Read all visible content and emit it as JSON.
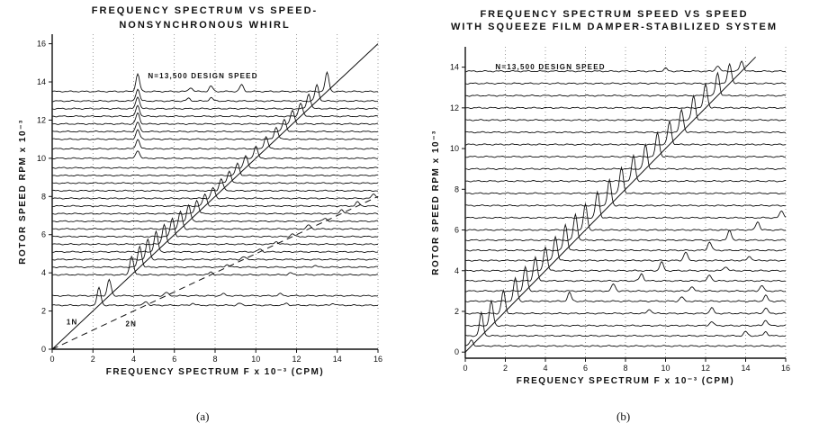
{
  "figures": [
    {
      "caption": "(a)",
      "chart_data": {
        "type": "line",
        "title": "FREQUENCY SPECTRUM VS SPEED-",
        "subtitle": "NONSYNCHRONOUS WHIRL",
        "xlabel": "FREQUENCY SPECTRUM F x 10⁻³ (CPM)",
        "ylabel": "ROTOR SPEED RPM x 10⁻³",
        "xlim": [
          0,
          16
        ],
        "ylim": [
          0,
          16.5
        ],
        "xticks": [
          0,
          2,
          4,
          6,
          8,
          10,
          12,
          14,
          16
        ],
        "yticks": [
          0,
          2,
          4,
          6,
          8,
          10,
          12,
          14,
          16
        ],
        "annotations": [
          {
            "text": "N=13,500 DESIGN SPEED",
            "x": 4.7,
            "y": 14.2
          },
          {
            "text": "1N",
            "x": 0.7,
            "y": 1.3
          },
          {
            "text": "2N",
            "x": 3.6,
            "y": 1.2
          }
        ],
        "reference_lines": [
          {
            "name": "1N",
            "slope": 1,
            "style": "solid"
          },
          {
            "name": "2N",
            "slope": 0.5,
            "style": "dashed"
          }
        ],
        "series": [
          {
            "speed": 2.3,
            "peaks": [
              [
                2.3,
                1.3
              ],
              [
                4.6,
                0.3
              ],
              [
                6.9,
                0.15
              ],
              [
                9.2,
                0.15
              ],
              [
                11.5,
                0.15
              ],
              [
                13.8,
                0.15
              ]
            ]
          },
          {
            "speed": 2.8,
            "peaks": [
              [
                2.8,
                1.2
              ],
              [
                5.6,
                0.25
              ],
              [
                8.4,
                0.15
              ],
              [
                11.2,
                0.15
              ]
            ]
          },
          {
            "speed": 3.9,
            "peaks": [
              [
                3.9,
                1.4
              ],
              [
                7.8,
                0.2
              ],
              [
                11.7,
                0.15
              ]
            ]
          },
          {
            "speed": 4.3,
            "peaks": [
              [
                4.3,
                1.6
              ],
              [
                8.6,
                0.2
              ],
              [
                12.9,
                0.12
              ]
            ]
          },
          {
            "speed": 4.7,
            "peaks": [
              [
                4.7,
                1.5
              ],
              [
                9.4,
                0.2
              ]
            ]
          },
          {
            "speed": 5.1,
            "peaks": [
              [
                5.1,
                1.5
              ],
              [
                10.2,
                0.2
              ]
            ]
          },
          {
            "speed": 5.5,
            "peaks": [
              [
                5.5,
                1.5
              ],
              [
                11.0,
                0.2
              ]
            ]
          },
          {
            "speed": 5.9,
            "peaks": [
              [
                5.9,
                1.4
              ],
              [
                11.8,
                0.2
              ]
            ]
          },
          {
            "speed": 6.3,
            "peaks": [
              [
                6.3,
                1.3
              ],
              [
                12.6,
                0.3
              ]
            ]
          },
          {
            "speed": 6.7,
            "peaks": [
              [
                6.7,
                1.2
              ],
              [
                13.4,
                0.25
              ]
            ]
          },
          {
            "speed": 7.1,
            "peaks": [
              [
                7.1,
                1.0
              ],
              [
                14.2,
                0.3
              ]
            ]
          },
          {
            "speed": 7.5,
            "peaks": [
              [
                7.5,
                0.9
              ],
              [
                15.0,
                0.3
              ]
            ]
          },
          {
            "speed": 7.9,
            "peaks": [
              [
                7.9,
                0.8
              ],
              [
                15.8,
                0.35
              ]
            ]
          },
          {
            "speed": 8.3,
            "peaks": [
              [
                8.3,
                0.9
              ]
            ]
          },
          {
            "speed": 8.7,
            "peaks": [
              [
                8.7,
                0.9
              ]
            ]
          },
          {
            "speed": 9.1,
            "peaks": [
              [
                9.1,
                0.9
              ]
            ]
          },
          {
            "speed": 9.5,
            "peaks": [
              [
                9.5,
                0.9
              ]
            ]
          },
          {
            "speed": 10.0,
            "peaks": [
              [
                4.2,
                0.6
              ],
              [
                10.0,
                0.9
              ]
            ]
          },
          {
            "speed": 10.5,
            "peaks": [
              [
                4.2,
                0.7
              ],
              [
                10.5,
                0.9
              ]
            ]
          },
          {
            "speed": 11.0,
            "peaks": [
              [
                4.2,
                0.7
              ],
              [
                11.0,
                0.9
              ]
            ]
          },
          {
            "speed": 11.4,
            "peaks": [
              [
                4.2,
                0.7
              ],
              [
                11.4,
                0.9
              ]
            ]
          },
          {
            "speed": 11.8,
            "peaks": [
              [
                4.2,
                0.8
              ],
              [
                11.8,
                1.0
              ]
            ]
          },
          {
            "speed": 12.2,
            "peaks": [
              [
                4.2,
                0.8
              ],
              [
                12.2,
                1.0
              ]
            ]
          },
          {
            "speed": 12.6,
            "peaks": [
              [
                4.2,
                0.9
              ],
              [
                12.6,
                1.1
              ]
            ]
          },
          {
            "speed": 13.0,
            "peaks": [
              [
                4.2,
                0.9
              ],
              [
                13.0,
                1.2
              ],
              [
                6.7,
                0.2
              ],
              [
                7.8,
                0.25
              ]
            ]
          },
          {
            "speed": 13.5,
            "peaks": [
              [
                4.2,
                1.3
              ],
              [
                13.5,
                1.4
              ],
              [
                6.8,
                0.3
              ],
              [
                7.8,
                0.4
              ],
              [
                9.3,
                0.5
              ]
            ]
          }
        ]
      }
    },
    {
      "caption": "(b)",
      "chart_data": {
        "type": "line",
        "title": "FREQUENCY SPECTRUM SPEED VS SPEED",
        "subtitle": "WITH SQUEEZE FILM DAMPER-STABILIZED SYSTEM",
        "xlabel": "FREQUENCY SPECTRUM F x 10⁻³ (CPM)",
        "ylabel": "ROTOR SPEED RPM x 10⁻³",
        "xlim": [
          0,
          16
        ],
        "ylim": [
          -0.3,
          15
        ],
        "xticks": [
          0,
          2,
          4,
          6,
          8,
          10,
          12,
          14,
          16
        ],
        "yticks": [
          0,
          2,
          4,
          6,
          8,
          10,
          12,
          14
        ],
        "annotations": [
          {
            "text": "N=13,500 DESIGN SPEED",
            "x": 1.5,
            "y": 13.9
          }
        ],
        "reference_lines": [
          {
            "name": "1N",
            "slope": 1,
            "style": "solid"
          }
        ],
        "series": [
          {
            "speed": 0.3,
            "peaks": [
              [
                0.3,
                0.4
              ]
            ]
          },
          {
            "speed": 0.8,
            "peaks": [
              [
                0.8,
                1.6
              ],
              [
                14.0,
                0.3
              ],
              [
                15.0,
                0.3
              ]
            ]
          },
          {
            "speed": 1.3,
            "peaks": [
              [
                1.3,
                1.7
              ],
              [
                12.3,
                0.3
              ],
              [
                15.0,
                0.4
              ]
            ]
          },
          {
            "speed": 1.9,
            "peaks": [
              [
                1.9,
                1.6
              ],
              [
                9.2,
                0.3
              ],
              [
                12.3,
                0.4
              ],
              [
                15.0,
                0.4
              ]
            ]
          },
          {
            "speed": 2.5,
            "peaks": [
              [
                2.5,
                1.6
              ],
              [
                5.2,
                0.6
              ],
              [
                10.8,
                0.3
              ],
              [
                15.0,
                0.4
              ]
            ]
          },
          {
            "speed": 3.0,
            "peaks": [
              [
                3.0,
                1.7
              ],
              [
                7.4,
                0.5
              ],
              [
                11.3,
                0.3
              ],
              [
                14.8,
                0.4
              ]
            ]
          },
          {
            "speed": 3.5,
            "peaks": [
              [
                3.5,
                1.7
              ],
              [
                8.8,
                0.5
              ],
              [
                12.2,
                0.4
              ]
            ]
          },
          {
            "speed": 4.0,
            "peaks": [
              [
                4.0,
                1.7
              ],
              [
                9.8,
                0.6
              ],
              [
                13.0,
                0.3
              ]
            ]
          },
          {
            "speed": 4.5,
            "peaks": [
              [
                4.5,
                1.7
              ],
              [
                11.0,
                0.6
              ],
              [
                14.2,
                0.3
              ]
            ]
          },
          {
            "speed": 5.0,
            "peaks": [
              [
                5.0,
                1.8
              ],
              [
                12.2,
                0.6
              ]
            ]
          },
          {
            "speed": 5.5,
            "peaks": [
              [
                5.5,
                1.8
              ],
              [
                13.2,
                0.7
              ]
            ]
          },
          {
            "speed": 6.0,
            "peaks": [
              [
                6.0,
                1.8
              ],
              [
                14.6,
                0.6
              ]
            ]
          },
          {
            "speed": 6.6,
            "peaks": [
              [
                6.6,
                1.8
              ],
              [
                15.8,
                0.5
              ]
            ]
          },
          {
            "speed": 7.2,
            "peaks": [
              [
                7.2,
                1.8
              ]
            ]
          },
          {
            "speed": 7.8,
            "peaks": [
              [
                7.8,
                1.8
              ]
            ]
          },
          {
            "speed": 8.4,
            "peaks": [
              [
                8.4,
                1.8
              ]
            ]
          },
          {
            "speed": 9.0,
            "peaks": [
              [
                9.0,
                1.7
              ]
            ]
          },
          {
            "speed": 9.6,
            "peaks": [
              [
                9.6,
                1.7
              ]
            ]
          },
          {
            "speed": 10.2,
            "peaks": [
              [
                10.2,
                1.6
              ]
            ]
          },
          {
            "speed": 10.8,
            "peaks": [
              [
                10.8,
                1.6
              ]
            ]
          },
          {
            "speed": 11.4,
            "peaks": [
              [
                11.4,
                1.7
              ]
            ]
          },
          {
            "speed": 12.0,
            "peaks": [
              [
                12.0,
                1.7
              ]
            ]
          },
          {
            "speed": 12.6,
            "peaks": [
              [
                12.6,
                1.6
              ]
            ]
          },
          {
            "speed": 13.2,
            "peaks": [
              [
                13.2,
                1.4
              ]
            ]
          },
          {
            "speed": 13.8,
            "peaks": [
              [
                13.8,
                0.7
              ],
              [
                10.0,
                0.2
              ],
              [
                12.6,
                0.4
              ]
            ]
          }
        ]
      }
    }
  ]
}
